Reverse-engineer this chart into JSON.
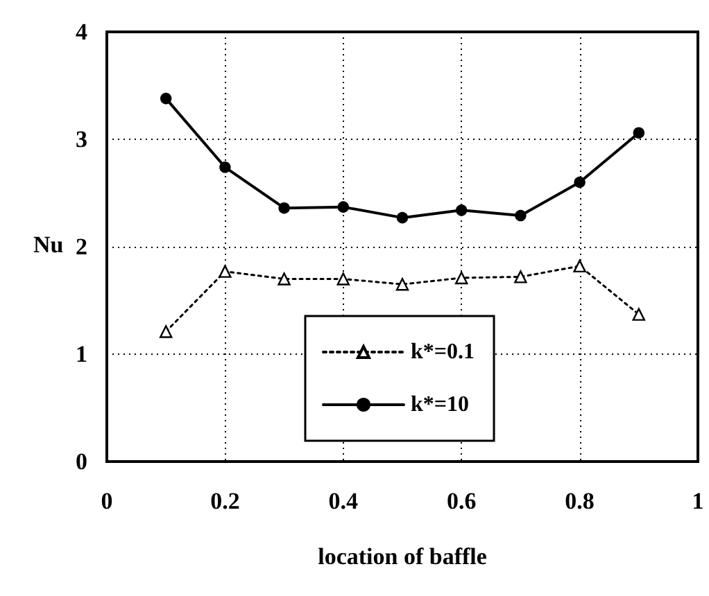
{
  "chart_data": {
    "type": "line",
    "xlabel": "location of baffle",
    "ylabel": "Nu",
    "x": [
      0.1,
      0.2,
      0.3,
      0.4,
      0.5,
      0.6,
      0.7,
      0.8,
      0.9
    ],
    "series": [
      {
        "name": "k*=0.1",
        "color": "#000000",
        "marker": "triangle",
        "line_style": "dotted",
        "values": [
          1.21,
          1.77,
          1.7,
          1.7,
          1.65,
          1.71,
          1.72,
          1.82,
          1.37
        ]
      },
      {
        "name": "k*=10",
        "color": "#000000",
        "marker": "circle",
        "line_style": "solid",
        "values": [
          3.38,
          2.74,
          2.36,
          2.37,
          2.27,
          2.34,
          2.29,
          2.6,
          3.06
        ]
      }
    ],
    "xlim": [
      0,
      1
    ],
    "xticks": [
      0,
      0.2,
      0.4,
      0.6,
      0.8,
      1
    ],
    "ylim": [
      0,
      4
    ],
    "yticks": [
      0,
      1,
      2,
      3,
      4
    ],
    "grid": true,
    "legend": "bottom"
  }
}
